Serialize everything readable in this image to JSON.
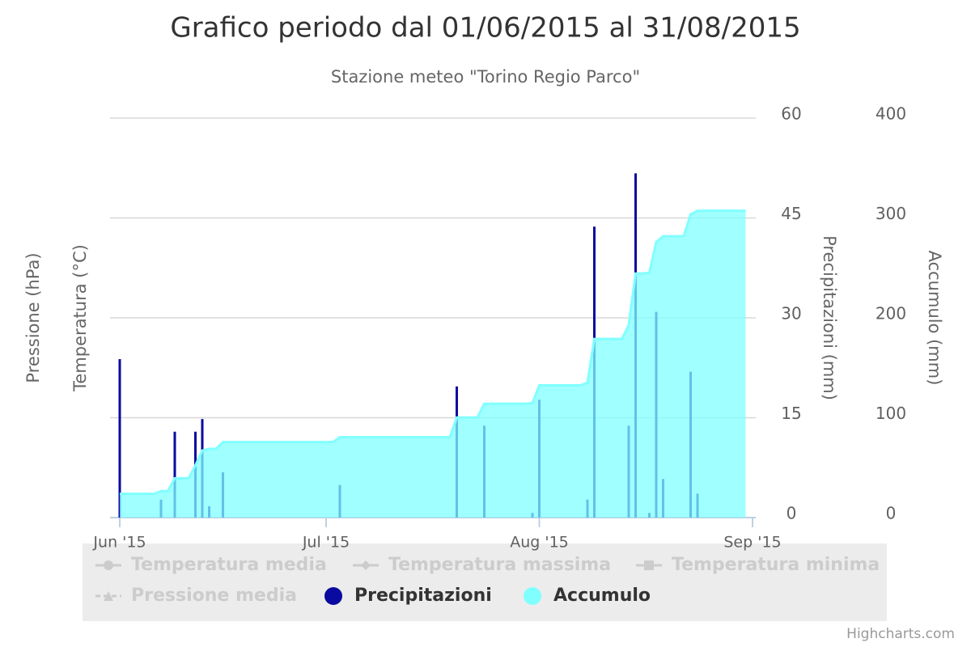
{
  "chart_data": {
    "type": "column-area",
    "title": "Grafico periodo dal 01/06/2015 al 31/08/2015",
    "subtitle": "Stazione meteo \"Torino Regio Parco\"",
    "left_axis_titles": [
      "Pressione (hPa)",
      "Temperatura (°C)"
    ],
    "y_title": "Precipitazioni (mm)",
    "y2_title": "Accumulo (mm)",
    "xlim": [
      0,
      92
    ],
    "xticks": [
      {
        "value": 0,
        "label": "Jun '15"
      },
      {
        "value": 30,
        "label": "Jul '15"
      },
      {
        "value": 61,
        "label": "Aug '15"
      },
      {
        "value": 92,
        "label": "Sep '15"
      }
    ],
    "ylim": [
      0,
      60
    ],
    "yticks": [
      0,
      15,
      30,
      45,
      60
    ],
    "y2lim": [
      0,
      400
    ],
    "y2ticks": [
      0,
      100,
      200,
      300,
      400
    ],
    "grid": true,
    "series": [
      {
        "name": "Temperatura media",
        "symbol": "circle",
        "visible": false,
        "x": [],
        "values": []
      },
      {
        "name": "Temperatura massima",
        "symbol": "diamond",
        "visible": false,
        "x": [],
        "values": []
      },
      {
        "name": "Temperatura minima",
        "symbol": "square",
        "visible": false,
        "x": [],
        "values": []
      },
      {
        "name": "Pressione media",
        "symbol": "triangle",
        "visible": false,
        "x": [],
        "values": []
      },
      {
        "name": "Precipitazioni",
        "type": "bar",
        "color": "#0a0aa0",
        "visible": true,
        "x": [
          0,
          6,
          8,
          11,
          12,
          13,
          15,
          32,
          49,
          53,
          60,
          61,
          68,
          69,
          74,
          75,
          77,
          78,
          79,
          83,
          84
        ],
        "values": [
          23.8,
          2.7,
          12.9,
          12.9,
          14.8,
          1.7,
          6.8,
          4.9,
          19.7,
          13.8,
          0.7,
          17.7,
          2.7,
          43.7,
          13.8,
          51.7,
          0.7,
          30.9,
          5.8,
          21.9,
          3.6
        ]
      },
      {
        "name": "Accumulo",
        "type": "area",
        "axis": "y2",
        "color": "#80ffff",
        "visible": true,
        "x": [
          0,
          5,
          6,
          7,
          8,
          10,
          11,
          12,
          13,
          14,
          15,
          31,
          32,
          48,
          49,
          52,
          53,
          59,
          60,
          61,
          67,
          68,
          69,
          73,
          74,
          75,
          76,
          77,
          78,
          79,
          82,
          83,
          84,
          91
        ],
        "values": [
          23.8,
          23.8,
          26.5,
          26.5,
          39.4,
          39.4,
          52.3,
          67.1,
          68.8,
          68.8,
          75.6,
          75.6,
          80.5,
          80.5,
          100.2,
          100.2,
          114,
          114,
          114.7,
          132.4,
          132.4,
          135.1,
          178.8,
          178.8,
          192.6,
          244.3,
          244.3,
          245,
          275.9,
          281.7,
          281.7,
          303.6,
          307.2,
          307.2
        ]
      }
    ],
    "credits": "Highcharts.com"
  }
}
